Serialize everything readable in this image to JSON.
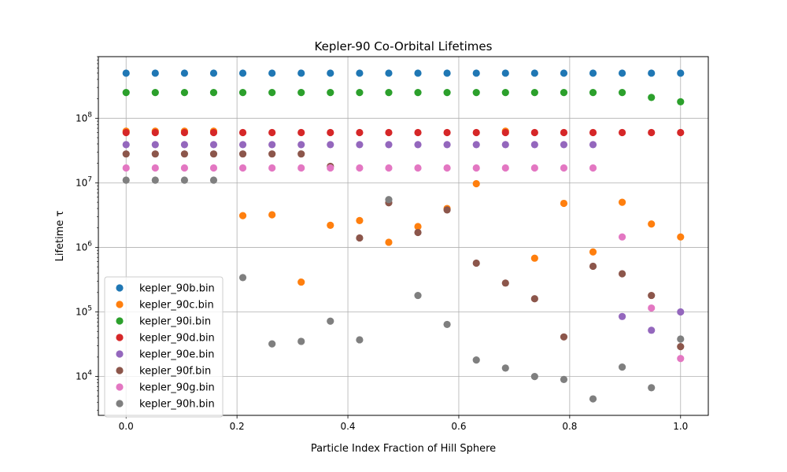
{
  "chart_data": {
    "type": "scatter",
    "title": "Kepler-90 Co-Orbital Lifetimes",
    "xlabel": "Particle Index Fraction of Hill Sphere",
    "ylabel": "Lifetime τ",
    "xlim": [
      -0.05,
      1.05
    ],
    "ylim": [
      2500,
      900000000
    ],
    "yscale": "log",
    "grid": true,
    "legend_position": "lower-left",
    "x_ticks": [
      0.0,
      0.2,
      0.4,
      0.6,
      0.8,
      1.0
    ],
    "x_tick_labels": [
      "0.0",
      "0.2",
      "0.4",
      "0.6",
      "0.8",
      "1.0"
    ],
    "y_ticks": [
      10000,
      100000,
      1000000,
      10000000,
      100000000
    ],
    "y_tick_labels": [
      {
        "base": "10",
        "exp": "4"
      },
      {
        "base": "10",
        "exp": "5"
      },
      {
        "base": "10",
        "exp": "6"
      },
      {
        "base": "10",
        "exp": "7"
      },
      {
        "base": "10",
        "exp": "8"
      }
    ],
    "x": [
      0.0,
      0.0526,
      0.1053,
      0.1579,
      0.2105,
      0.2632,
      0.3158,
      0.3684,
      0.4211,
      0.4737,
      0.5263,
      0.5789,
      0.6316,
      0.6842,
      0.7368,
      0.7895,
      0.8421,
      0.8947,
      0.9474,
      1.0
    ],
    "series": [
      {
        "name": "kepler_90b.bin",
        "color": "#1f77b4",
        "values": [
          500000000,
          500000000,
          500000000,
          500000000,
          500000000,
          500000000,
          500000000,
          500000000,
          500000000,
          500000000,
          500000000,
          500000000,
          500000000,
          500000000,
          500000000,
          500000000,
          500000000,
          500000000,
          500000000,
          500000000
        ]
      },
      {
        "name": "kepler_90c.bin",
        "color": "#ff7f0e",
        "values": [
          63000000,
          63000000,
          63000000,
          63000000,
          3100000,
          3200000,
          290000,
          2200000,
          2600000,
          1200000,
          2100000,
          4000000,
          9700000,
          63000000,
          680000,
          4800000,
          850000,
          5000000,
          2300000,
          1450000
        ]
      },
      {
        "name": "kepler_90i.bin",
        "color": "#2ca02c",
        "values": [
          250000000,
          250000000,
          250000000,
          250000000,
          250000000,
          250000000,
          250000000,
          250000000,
          250000000,
          250000000,
          250000000,
          250000000,
          250000000,
          250000000,
          250000000,
          250000000,
          250000000,
          250000000,
          210000000,
          180000000
        ]
      },
      {
        "name": "kepler_90d.bin",
        "color": "#d62728",
        "values": [
          60000000,
          60000000,
          60000000,
          60000000,
          60000000,
          60000000,
          60000000,
          60000000,
          60000000,
          60000000,
          60000000,
          60000000,
          60000000,
          60000000,
          60000000,
          60000000,
          60000000,
          60000000,
          60000000,
          60000000
        ]
      },
      {
        "name": "kepler_90e.bin",
        "color": "#9467bd",
        "values": [
          39000000,
          39000000,
          39000000,
          39000000,
          39000000,
          39000000,
          39000000,
          39000000,
          39000000,
          39000000,
          39000000,
          39000000,
          39000000,
          39000000,
          39000000,
          39000000,
          39000000,
          85000,
          52000,
          100000
        ]
      },
      {
        "name": "kepler_90f.bin",
        "color": "#8c564b",
        "values": [
          28000000,
          28000000,
          28000000,
          28000000,
          28000000,
          28000000,
          28000000,
          18000000,
          1400000,
          4900000,
          1700000,
          3800000,
          570000,
          280000,
          160000,
          41000,
          510000,
          390000,
          180000,
          29000
        ]
      },
      {
        "name": "kepler_90g.bin",
        "color": "#e377c2",
        "values": [
          17000000,
          17000000,
          17000000,
          17000000,
          17000000,
          17000000,
          17000000,
          17000000,
          17000000,
          17000000,
          17000000,
          17000000,
          17000000,
          17000000,
          17000000,
          17000000,
          17000000,
          1450000,
          115000,
          19000
        ]
      },
      {
        "name": "kepler_90h.bin",
        "color": "#7f7f7f",
        "values": [
          11000000,
          11000000,
          11000000,
          11000000,
          340000,
          32000,
          35000,
          72000,
          37000,
          5500000,
          180000,
          64000,
          18000,
          13500,
          10000,
          9000,
          4500,
          14000,
          6700,
          38000
        ]
      }
    ]
  }
}
